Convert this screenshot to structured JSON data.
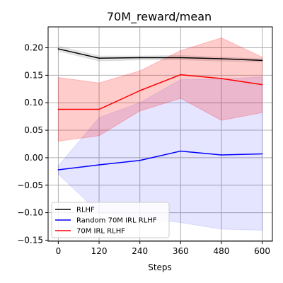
{
  "chart_data": {
    "type": "line",
    "title": "70M_reward/mean",
    "xlabel": "Steps",
    "ylabel": "",
    "x": [
      0,
      120,
      240,
      360,
      480,
      600
    ],
    "xlim": [
      -30,
      630
    ],
    "ylim": [
      -0.152,
      0.238
    ],
    "x_ticks": [
      0,
      120,
      240,
      360,
      480,
      600
    ],
    "x_tick_labels": [
      "0",
      "120",
      "240",
      "360",
      "480",
      "600"
    ],
    "y_ticks": [
      -0.15,
      -0.1,
      -0.05,
      0.0,
      0.05,
      0.1,
      0.15,
      0.2
    ],
    "y_tick_labels": [
      "−0.15",
      "−0.10",
      "−0.05",
      "0.00",
      "0.05",
      "0.10",
      "0.15",
      "0.20"
    ],
    "grid": true,
    "legend_position": "lower-left",
    "series": [
      {
        "name": "RLHF",
        "color": "#000000",
        "values": [
          0.198,
          0.181,
          0.182,
          0.182,
          0.18,
          0.177
        ],
        "band_lower": [
          0.194,
          0.176,
          0.178,
          0.178,
          0.176,
          0.174
        ],
        "band_upper": [
          0.203,
          0.185,
          0.185,
          0.186,
          0.183,
          0.18
        ]
      },
      {
        "name": "Random 70M IRL RLHF",
        "color": "#0000ff",
        "values": [
          -0.022,
          -0.013,
          -0.005,
          0.012,
          0.005,
          0.007
        ],
        "band_lower": [
          -0.03,
          -0.1,
          -0.11,
          -0.118,
          -0.13,
          -0.132
        ],
        "band_upper": [
          -0.015,
          0.073,
          0.1,
          0.142,
          0.143,
          0.147
        ]
      },
      {
        "name": "70M IRL RLHF",
        "color": "#ff0000",
        "values": [
          0.088,
          0.088,
          0.122,
          0.151,
          0.144,
          0.133
        ],
        "band_lower": [
          0.03,
          0.04,
          0.085,
          0.108,
          0.068,
          0.082
        ],
        "band_upper": [
          0.146,
          0.136,
          0.158,
          0.195,
          0.218,
          0.183
        ]
      }
    ]
  }
}
